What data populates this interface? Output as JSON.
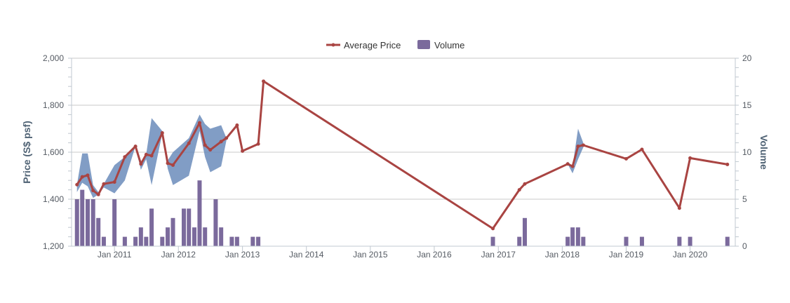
{
  "chart_data": {
    "type": "line",
    "title": "",
    "legend": {
      "placement": "top-center",
      "items": [
        {
          "label": "Average Price",
          "color": "#a94442"
        },
        {
          "label": "Volume",
          "color": "#7b6a9c"
        }
      ]
    },
    "x_axis": {
      "type": "datetime",
      "range": [
        "2010-05-01",
        "2020-09-15"
      ],
      "ticks": [
        "2011-01-01",
        "2012-01-01",
        "2013-01-01",
        "2014-01-01",
        "2015-01-01",
        "2016-01-01",
        "2017-01-01",
        "2018-01-01",
        "2019-01-01",
        "2020-01-01"
      ],
      "tick_labels": [
        "Jan 2011",
        "Jan 2012",
        "Jan 2013",
        "Jan 2014",
        "Jan 2015",
        "Jan 2016",
        "Jan 2017",
        "Jan 2018",
        "Jan 2019",
        "Jan 2020"
      ]
    },
    "y_axis_left": {
      "label": "Price (S$ psf)",
      "ylim": [
        1200,
        2000
      ],
      "ticks": [
        1200,
        1400,
        1600,
        1800,
        2000
      ],
      "tick_labels": [
        "1,200",
        "1,400",
        "1,600",
        "1,800",
        "2,000"
      ]
    },
    "y_axis_right": {
      "label": "Volume",
      "ylim": [
        0,
        20
      ],
      "ticks": [
        0,
        5,
        10,
        15,
        20
      ],
      "tick_labels": [
        "0",
        "5",
        "10",
        "15",
        "20"
      ]
    },
    "grid": true,
    "series": [
      {
        "name": "Average Price",
        "type": "line",
        "color": "#a94442",
        "points": [
          [
            "2010-06-01",
            1462
          ],
          [
            "2010-07-01",
            1495
          ],
          [
            "2010-08-01",
            1502
          ],
          [
            "2010-09-01",
            1437
          ],
          [
            "2010-10-01",
            1420
          ],
          [
            "2010-11-01",
            1465
          ],
          [
            "2011-01-01",
            1473
          ],
          [
            "2011-03-01",
            1580
          ],
          [
            "2011-05-01",
            1625
          ],
          [
            "2011-06-01",
            1550
          ],
          [
            "2011-07-01",
            1590
          ],
          [
            "2011-08-01",
            1585
          ],
          [
            "2011-10-01",
            1682
          ],
          [
            "2011-11-01",
            1553
          ],
          [
            "2011-12-01",
            1545
          ],
          [
            "2012-03-01",
            1638
          ],
          [
            "2012-05-01",
            1725
          ],
          [
            "2012-06-01",
            1630
          ],
          [
            "2012-07-01",
            1610
          ],
          [
            "2012-09-01",
            1645
          ],
          [
            "2012-10-01",
            1660
          ],
          [
            "2012-12-01",
            1715
          ],
          [
            "2013-01-01",
            1605
          ],
          [
            "2013-04-01",
            1635
          ],
          [
            "2013-05-01",
            1902
          ],
          [
            "2016-12-01",
            1275
          ],
          [
            "2017-05-01",
            1440
          ],
          [
            "2017-06-01",
            1465
          ],
          [
            "2018-02-01",
            1550
          ],
          [
            "2018-03-01",
            1540
          ],
          [
            "2018-04-01",
            1625
          ],
          [
            "2018-05-01",
            1630
          ],
          [
            "2019-01-01",
            1572
          ],
          [
            "2019-04-01",
            1612
          ],
          [
            "2019-11-01",
            1362
          ],
          [
            "2020-01-01",
            1575
          ],
          [
            "2020-08-01",
            1548
          ]
        ]
      },
      {
        "name": "Price range",
        "type": "arearange",
        "color": "#6b8cbb",
        "ranges": [
          [
            "2010-06-01",
            1430,
            1462
          ],
          [
            "2010-07-01",
            1470,
            1595
          ],
          [
            "2010-08-01",
            1455,
            1595
          ],
          [
            "2010-09-01",
            1405,
            1460
          ],
          [
            "2010-10-01",
            1420,
            1430
          ],
          [
            "2010-11-01",
            1450,
            1465
          ],
          [
            "2011-01-01",
            1425,
            1545
          ],
          [
            "2011-03-01",
            1480,
            1580
          ],
          [
            "2011-05-01",
            1625,
            1625
          ],
          [
            "2011-06-01",
            1525,
            1560
          ],
          [
            "2011-07-01",
            1570,
            1590
          ],
          [
            "2011-08-01",
            1460,
            1745
          ],
          [
            "2011-10-01",
            1680,
            1690
          ],
          [
            "2011-11-01",
            1530,
            1565
          ],
          [
            "2011-12-01",
            1460,
            1600
          ],
          [
            "2012-03-01",
            1500,
            1660
          ],
          [
            "2012-05-01",
            1690,
            1760
          ],
          [
            "2012-06-01",
            1580,
            1720
          ],
          [
            "2012-07-01",
            1515,
            1700
          ],
          [
            "2012-09-01",
            1540,
            1715
          ],
          [
            "2012-10-01",
            1650,
            1660
          ],
          [
            "2018-02-01",
            1550,
            1560
          ],
          [
            "2018-03-01",
            1510,
            1540
          ],
          [
            "2018-04-01",
            1570,
            1700
          ],
          [
            "2018-05-01",
            1620,
            1640
          ]
        ]
      },
      {
        "name": "Volume",
        "type": "column",
        "color": "#7b6a9c",
        "points": [
          [
            "2010-06-01",
            5
          ],
          [
            "2010-07-01",
            6
          ],
          [
            "2010-08-01",
            5
          ],
          [
            "2010-09-01",
            5
          ],
          [
            "2010-10-01",
            3
          ],
          [
            "2010-11-01",
            1
          ],
          [
            "2011-01-01",
            5
          ],
          [
            "2011-03-01",
            1
          ],
          [
            "2011-05-01",
            1
          ],
          [
            "2011-06-01",
            2
          ],
          [
            "2011-07-01",
            1
          ],
          [
            "2011-08-01",
            4
          ],
          [
            "2011-10-01",
            1
          ],
          [
            "2011-11-01",
            2
          ],
          [
            "2011-12-01",
            3
          ],
          [
            "2012-02-01",
            4
          ],
          [
            "2012-03-01",
            4
          ],
          [
            "2012-04-01",
            2
          ],
          [
            "2012-05-01",
            7
          ],
          [
            "2012-06-01",
            2
          ],
          [
            "2012-08-01",
            5
          ],
          [
            "2012-09-01",
            2
          ],
          [
            "2012-11-01",
            1
          ],
          [
            "2012-12-01",
            1
          ],
          [
            "2013-03-01",
            1
          ],
          [
            "2013-04-01",
            1
          ],
          [
            "2016-12-01",
            1
          ],
          [
            "2017-05-01",
            1
          ],
          [
            "2017-06-01",
            3
          ],
          [
            "2018-02-01",
            1
          ],
          [
            "2018-03-01",
            2
          ],
          [
            "2018-04-01",
            2
          ],
          [
            "2018-05-01",
            1
          ],
          [
            "2019-01-01",
            1
          ],
          [
            "2019-04-01",
            1
          ],
          [
            "2019-11-01",
            1
          ],
          [
            "2020-01-01",
            1
          ],
          [
            "2020-08-01",
            1
          ]
        ]
      }
    ]
  }
}
